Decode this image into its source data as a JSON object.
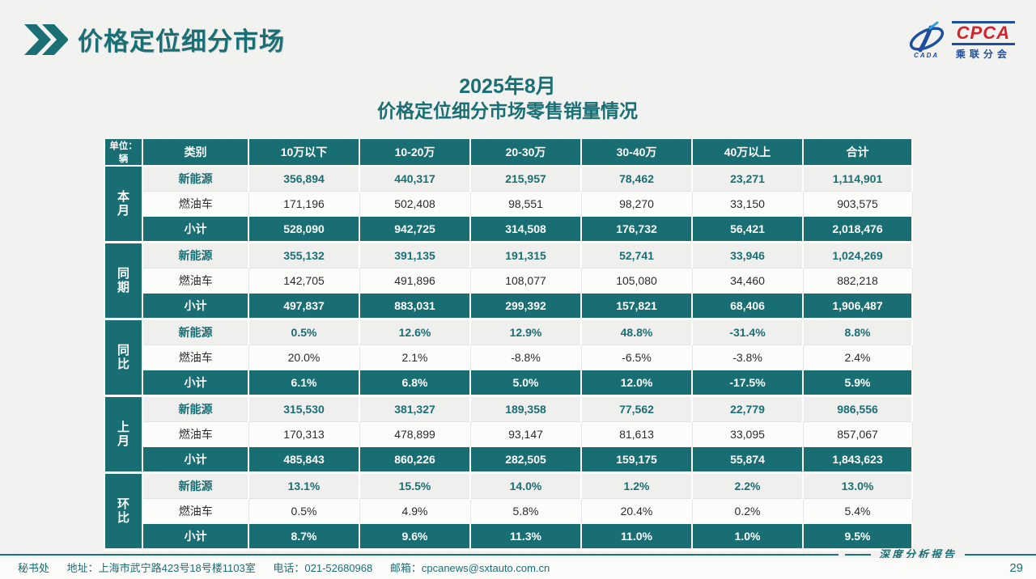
{
  "slide": {
    "header_title": "价格定位细分市场",
    "date_title": "2025年8月",
    "table_title": "价格定位细分市场零售销量情况",
    "report_type": "深度分析报告",
    "page_number": "29"
  },
  "logo": {
    "name": "CPCA",
    "cada": "CADA",
    "org": "乘联分会"
  },
  "footer": {
    "dept": "秘书处",
    "address": "地址：上海市武宁路423号18号楼1103室",
    "phone": "电话：021-52680968",
    "email": "邮箱：cpcanews@sxtauto.com.cn"
  },
  "colors": {
    "teal": "#186e73",
    "logo_blue": "#1e4f9e",
    "logo_red": "#d4232a"
  },
  "table": {
    "unit_label": "单位：辆",
    "columns": [
      "类别",
      "10万以下",
      "10-20万",
      "20-30万",
      "30-40万",
      "40万以上",
      "合计"
    ],
    "groups": [
      {
        "label": "本月",
        "rows": [
          {
            "type": "new_energy",
            "label": "新能源",
            "values": [
              "356,894",
              "440,317",
              "215,957",
              "78,462",
              "23,271",
              "1,114,901"
            ]
          },
          {
            "type": "fuel",
            "label": "燃油车",
            "values": [
              "171,196",
              "502,408",
              "98,551",
              "98,270",
              "33,150",
              "903,575"
            ]
          },
          {
            "type": "subtotal",
            "label": "小计",
            "values": [
              "528,090",
              "942,725",
              "314,508",
              "176,732",
              "56,421",
              "2,018,476"
            ]
          }
        ]
      },
      {
        "label": "同期",
        "rows": [
          {
            "type": "new_energy",
            "label": "新能源",
            "values": [
              "355,132",
              "391,135",
              "191,315",
              "52,741",
              "33,946",
              "1,024,269"
            ]
          },
          {
            "type": "fuel",
            "label": "燃油车",
            "values": [
              "142,705",
              "491,896",
              "108,077",
              "105,080",
              "34,460",
              "882,218"
            ]
          },
          {
            "type": "subtotal",
            "label": "小计",
            "values": [
              "497,837",
              "883,031",
              "299,392",
              "157,821",
              "68,406",
              "1,906,487"
            ]
          }
        ]
      },
      {
        "label": "同比",
        "rows": [
          {
            "type": "new_energy",
            "label": "新能源",
            "values": [
              "0.5%",
              "12.6%",
              "12.9%",
              "48.8%",
              "-31.4%",
              "8.8%"
            ]
          },
          {
            "type": "fuel",
            "label": "燃油车",
            "values": [
              "20.0%",
              "2.1%",
              "-8.8%",
              "-6.5%",
              "-3.8%",
              "2.4%"
            ]
          },
          {
            "type": "subtotal",
            "label": "小计",
            "values": [
              "6.1%",
              "6.8%",
              "5.0%",
              "12.0%",
              "-17.5%",
              "5.9%"
            ]
          }
        ]
      },
      {
        "label": "上月",
        "rows": [
          {
            "type": "new_energy",
            "label": "新能源",
            "values": [
              "315,530",
              "381,327",
              "189,358",
              "77,562",
              "22,779",
              "986,556"
            ]
          },
          {
            "type": "fuel",
            "label": "燃油车",
            "values": [
              "170,313",
              "478,899",
              "93,147",
              "81,613",
              "33,095",
              "857,067"
            ]
          },
          {
            "type": "subtotal",
            "label": "小计",
            "values": [
              "485,843",
              "860,226",
              "282,505",
              "159,175",
              "55,874",
              "1,843,623"
            ]
          }
        ]
      },
      {
        "label": "环比",
        "rows": [
          {
            "type": "new_energy",
            "label": "新能源",
            "values": [
              "13.1%",
              "15.5%",
              "14.0%",
              "1.2%",
              "2.2%",
              "13.0%"
            ]
          },
          {
            "type": "fuel",
            "label": "燃油车",
            "values": [
              "0.5%",
              "4.9%",
              "5.8%",
              "20.4%",
              "0.2%",
              "5.4%"
            ]
          },
          {
            "type": "subtotal",
            "label": "小计",
            "values": [
              "8.7%",
              "9.6%",
              "11.3%",
              "11.0%",
              "1.0%",
              "9.5%"
            ]
          }
        ]
      }
    ]
  }
}
